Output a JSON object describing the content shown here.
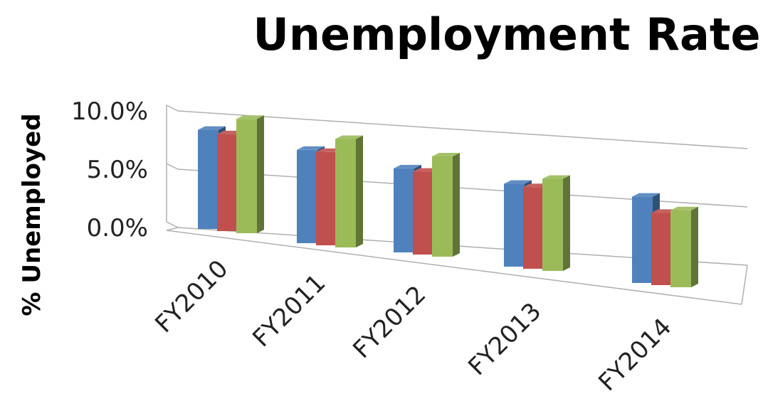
{
  "chart_data": {
    "type": "bar",
    "title": "Unemployment Rate",
    "xlabel": "",
    "ylabel": "% Unemployed",
    "categories": [
      "FY2010",
      "FY2011",
      "FY2012",
      "FY2013",
      "FY2014"
    ],
    "ylim": [
      0,
      10
    ],
    "yticks": [
      "0.0%",
      "5.0%",
      "10.0%"
    ],
    "series": [
      {
        "values": [
          8.5,
          8.0,
          7.2,
          7.1,
          7.4
        ],
        "color": "#4f81bd"
      },
      {
        "values": [
          8.3,
          8.0,
          7.1,
          7.0,
          6.2
        ],
        "color": "#c0504d"
      },
      {
        "values": [
          9.8,
          9.3,
          8.6,
          7.9,
          6.6
        ],
        "color": "#9bbb59"
      }
    ],
    "legend": "none",
    "grid": true,
    "style": "3d-clustered-column"
  }
}
